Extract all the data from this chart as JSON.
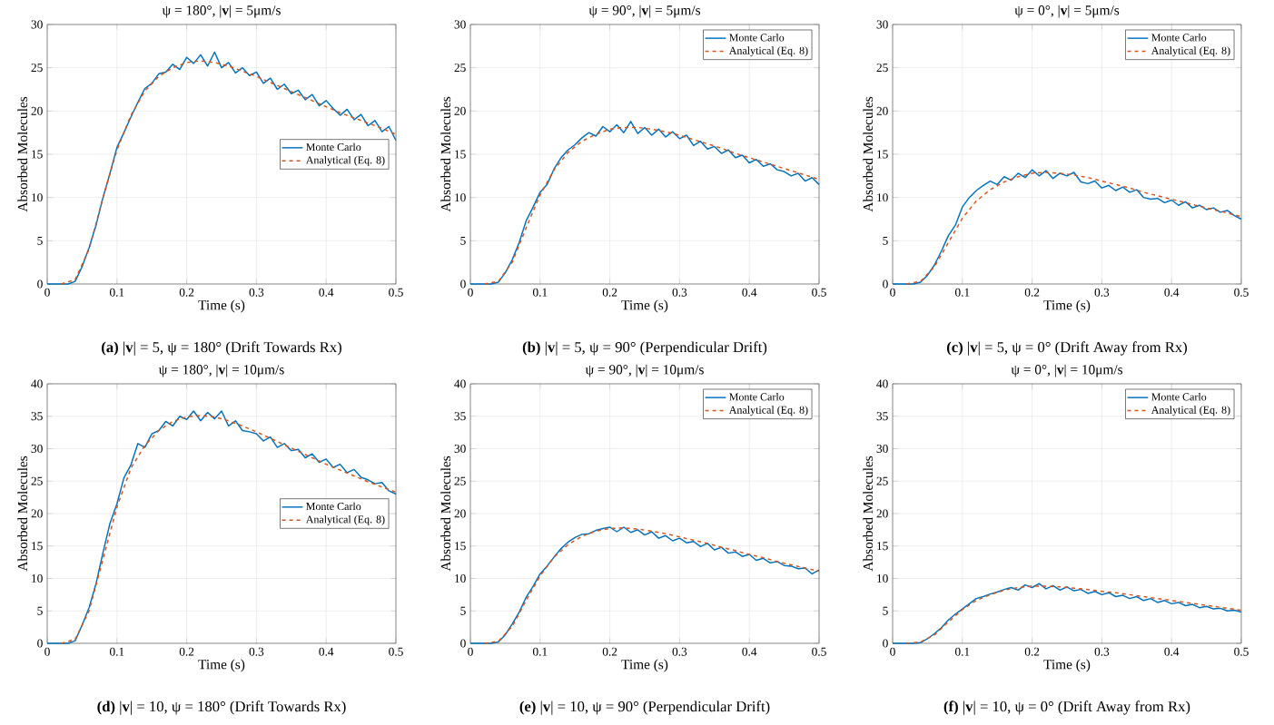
{
  "chart_data": [
    {
      "type": "line",
      "title": "ψ = 180°, |**v**| = 5μm/s",
      "xlabel": "Time (s)",
      "ylabel": "Absorbed Molecules",
      "annotations": [
        "**(a)** |**v**| = 5, ψ = 180° (Drift Towards Rx)"
      ],
      "xlim": [
        0,
        0.5
      ],
      "ylim": [
        0,
        30
      ],
      "xticks": [
        0,
        0.1,
        0.2,
        0.3,
        0.4,
        0.5
      ],
      "yticks": [
        0,
        5,
        10,
        15,
        20,
        25,
        30
      ],
      "grid": true,
      "legend": "right",
      "series": [
        {
          "name": "Monte Carlo",
          "color": "#0072bd",
          "line_style": "solid",
          "x": [
            0,
            0.01,
            0.02,
            0.03,
            0.04,
            0.05,
            0.06,
            0.07,
            0.08,
            0.09,
            0.1,
            0.11,
            0.12,
            0.13,
            0.14,
            0.15,
            0.16,
            0.17,
            0.18,
            0.19,
            0.2,
            0.21,
            0.22,
            0.23,
            0.24,
            0.25,
            0.26,
            0.27,
            0.28,
            0.29,
            0.3,
            0.31,
            0.32,
            0.33,
            0.34,
            0.35,
            0.36,
            0.37,
            0.38,
            0.39,
            0.4,
            0.41,
            0.42,
            0.43,
            0.44,
            0.45,
            0.46,
            0.47,
            0.48,
            0.49,
            0.5
          ],
          "values": [
            0,
            0,
            0,
            0,
            0.3,
            2,
            4.2,
            6.8,
            10,
            12.8,
            15.8,
            17.5,
            19.3,
            21,
            22.6,
            23.2,
            24.3,
            24.5,
            25.4,
            24.8,
            26.2,
            25.5,
            26.5,
            25.2,
            26.8,
            25,
            25.6,
            24.4,
            25,
            24.1,
            24.5,
            23.2,
            23.8,
            22.5,
            23.1,
            22,
            22.4,
            21.3,
            21.9,
            20.6,
            21.2,
            20.3,
            19.5,
            20.2,
            19,
            19.6,
            18.3,
            18.9,
            17.6,
            18.2,
            16.6
          ]
        },
        {
          "name": "Analytical (Eq. 8)",
          "color": "#d95319",
          "line_style": "dashed",
          "x": [
            0.02,
            0.04,
            0.06,
            0.08,
            0.1,
            0.12,
            0.14,
            0.16,
            0.18,
            0.2,
            0.22,
            0.24,
            0.26,
            0.28,
            0.3,
            0.32,
            0.34,
            0.36,
            0.38,
            0.4,
            0.42,
            0.44,
            0.46,
            0.48,
            0.5
          ],
          "values": [
            0,
            0.5,
            4,
            10,
            15.5,
            19.5,
            22.3,
            24,
            25,
            25.6,
            25.8,
            25.6,
            25.2,
            24.6,
            24,
            23.3,
            22.6,
            21.9,
            21.2,
            20.5,
            19.8,
            19.2,
            18.6,
            18,
            17.3
          ]
        }
      ]
    },
    {
      "type": "line",
      "title": "ψ = 90°, |**v**| = 5μm/s",
      "xlabel": "Time (s)",
      "ylabel": "Absorbed Molecules",
      "annotations": [
        "**(b)** |**v**| = 5, ψ = 90° (Perpendicular Drift)"
      ],
      "xlim": [
        0,
        0.5
      ],
      "ylim": [
        0,
        30
      ],
      "xticks": [
        0,
        0.1,
        0.2,
        0.3,
        0.4,
        0.5
      ],
      "yticks": [
        0,
        5,
        10,
        15,
        20,
        25,
        30
      ],
      "grid": true,
      "legend": "top right",
      "series": [
        {
          "name": "Monte Carlo",
          "color": "#0072bd",
          "line_style": "solid",
          "x": [
            0,
            0.01,
            0.02,
            0.03,
            0.04,
            0.05,
            0.06,
            0.07,
            0.08,
            0.09,
            0.1,
            0.11,
            0.12,
            0.13,
            0.14,
            0.15,
            0.16,
            0.17,
            0.18,
            0.19,
            0.2,
            0.21,
            0.22,
            0.23,
            0.24,
            0.25,
            0.26,
            0.27,
            0.28,
            0.29,
            0.3,
            0.31,
            0.32,
            0.33,
            0.34,
            0.35,
            0.36,
            0.37,
            0.38,
            0.39,
            0.4,
            0.41,
            0.42,
            0.43,
            0.44,
            0.45,
            0.46,
            0.47,
            0.48,
            0.49,
            0.5
          ],
          "values": [
            0,
            0,
            0,
            0,
            0.2,
            1.3,
            2.8,
            4.8,
            7.3,
            8.9,
            10.6,
            11.5,
            13.3,
            14.6,
            15.5,
            16.1,
            16.9,
            17.5,
            17.1,
            18.2,
            17.6,
            18.4,
            17.5,
            18.8,
            17.4,
            18.1,
            17.2,
            17.9,
            17,
            17.6,
            16.8,
            17.2,
            16,
            16.5,
            15.6,
            15.9,
            15.1,
            15.5,
            14.6,
            14.9,
            14,
            14.4,
            13.6,
            13.9,
            13.2,
            13,
            12.5,
            12.8,
            11.9,
            12.3,
            11.5
          ]
        },
        {
          "name": "Analytical (Eq. 8)",
          "color": "#d95319",
          "line_style": "dashed",
          "x": [
            0.02,
            0.04,
            0.06,
            0.08,
            0.1,
            0.12,
            0.14,
            0.16,
            0.18,
            0.2,
            0.22,
            0.24,
            0.26,
            0.28,
            0.3,
            0.32,
            0.34,
            0.36,
            0.38,
            0.4,
            0.42,
            0.44,
            0.46,
            0.48,
            0.5
          ],
          "values": [
            0,
            0.3,
            2.5,
            6.5,
            10.3,
            13.2,
            15.2,
            16.5,
            17.3,
            17.9,
            18.1,
            18.1,
            17.9,
            17.6,
            17.2,
            16.7,
            16.2,
            15.7,
            15.1,
            14.6,
            14.1,
            13.6,
            13.1,
            12.6,
            12.1
          ]
        }
      ]
    },
    {
      "type": "line",
      "title": "ψ = 0°, |**v**| = 5μm/s",
      "xlabel": "Time (s)",
      "ylabel": "Absorbed Molecules",
      "annotations": [
        "**(c)** |**v**| = 5, ψ = 0° (Drift Away from Rx)"
      ],
      "xlim": [
        0,
        0.5
      ],
      "ylim": [
        0,
        30
      ],
      "xticks": [
        0,
        0.1,
        0.2,
        0.3,
        0.4,
        0.5
      ],
      "yticks": [
        0,
        5,
        10,
        15,
        20,
        25,
        30
      ],
      "grid": true,
      "legend": "top right",
      "series": [
        {
          "name": "Monte Carlo",
          "color": "#0072bd",
          "line_style": "solid",
          "x": [
            0,
            0.01,
            0.02,
            0.03,
            0.04,
            0.05,
            0.06,
            0.07,
            0.08,
            0.09,
            0.1,
            0.11,
            0.12,
            0.13,
            0.14,
            0.15,
            0.16,
            0.17,
            0.18,
            0.19,
            0.2,
            0.21,
            0.22,
            0.23,
            0.24,
            0.25,
            0.26,
            0.27,
            0.28,
            0.29,
            0.3,
            0.31,
            0.32,
            0.33,
            0.34,
            0.35,
            0.36,
            0.37,
            0.38,
            0.39,
            0.4,
            0.41,
            0.42,
            0.43,
            0.44,
            0.45,
            0.46,
            0.47,
            0.48,
            0.49,
            0.5
          ],
          "values": [
            0,
            0,
            0,
            0,
            0.2,
            1,
            2.2,
            3.8,
            5.6,
            6.8,
            8.9,
            10,
            10.8,
            11.4,
            11.9,
            11.5,
            12.4,
            12,
            12.8,
            12.3,
            13.2,
            12.5,
            13.1,
            12.2,
            12.8,
            12.5,
            12.9,
            11.8,
            11.6,
            11.9,
            11.1,
            11.4,
            10.8,
            11.2,
            10.6,
            10.9,
            10,
            9.8,
            9.9,
            9.4,
            9.7,
            9.1,
            9.5,
            8.8,
            9.1,
            8.6,
            8.8,
            8.3,
            8.5,
            7.9,
            7.5
          ]
        },
        {
          "name": "Analytical (Eq. 8)",
          "color": "#d95319",
          "line_style": "dashed",
          "x": [
            0.02,
            0.04,
            0.06,
            0.08,
            0.1,
            0.12,
            0.14,
            0.16,
            0.18,
            0.2,
            0.22,
            0.24,
            0.26,
            0.28,
            0.3,
            0.32,
            0.34,
            0.36,
            0.38,
            0.4,
            0.42,
            0.44,
            0.46,
            0.48,
            0.5
          ],
          "values": [
            0,
            0.3,
            2,
            4.8,
            7.6,
            9.6,
            10.9,
            11.8,
            12.4,
            12.8,
            12.9,
            12.8,
            12.6,
            12.3,
            11.9,
            11.5,
            11.1,
            10.6,
            10.2,
            9.8,
            9.4,
            9,
            8.6,
            8.2,
            7.8
          ]
        }
      ]
    },
    {
      "type": "line",
      "title": "ψ = 180°, |**v**| = 10μm/s",
      "xlabel": "Time (s)",
      "ylabel": "Absorbed Molecules",
      "annotations": [
        "**(d)** |**v**| = 10, ψ = 180° (Drift Towards Rx)"
      ],
      "xlim": [
        0,
        0.5
      ],
      "ylim": [
        0,
        40
      ],
      "xticks": [
        0,
        0.1,
        0.2,
        0.3,
        0.4,
        0.5
      ],
      "yticks": [
        0,
        5,
        10,
        15,
        20,
        25,
        30,
        35,
        40
      ],
      "grid": true,
      "legend": "right",
      "series": [
        {
          "name": "Monte Carlo",
          "color": "#0072bd",
          "line_style": "solid",
          "x": [
            0,
            0.01,
            0.02,
            0.03,
            0.04,
            0.05,
            0.06,
            0.07,
            0.08,
            0.09,
            0.1,
            0.11,
            0.12,
            0.13,
            0.14,
            0.15,
            0.16,
            0.17,
            0.18,
            0.19,
            0.2,
            0.21,
            0.22,
            0.23,
            0.24,
            0.25,
            0.26,
            0.27,
            0.28,
            0.29,
            0.3,
            0.31,
            0.32,
            0.33,
            0.34,
            0.35,
            0.36,
            0.37,
            0.38,
            0.39,
            0.4,
            0.41,
            0.42,
            0.43,
            0.44,
            0.45,
            0.46,
            0.47,
            0.48,
            0.49,
            0.5
          ],
          "values": [
            0,
            0,
            0,
            0,
            0.4,
            2.8,
            5.5,
            9.2,
            14,
            18.5,
            21.5,
            25.5,
            27.5,
            30.8,
            30.2,
            32.3,
            32.8,
            34.2,
            33.5,
            35,
            34.5,
            35.8,
            34.3,
            35.6,
            34.6,
            35.8,
            33.5,
            34.3,
            32.8,
            32.6,
            32.3,
            31.2,
            31.8,
            30.2,
            30.8,
            29.7,
            29.9,
            28.6,
            29.2,
            27.9,
            28.4,
            27.1,
            27.6,
            26.3,
            26.8,
            25.6,
            25.2,
            24.6,
            24.8,
            23.5,
            23
          ]
        },
        {
          "name": "Analytical (Eq. 8)",
          "color": "#d95319",
          "line_style": "dashed",
          "x": [
            0.02,
            0.04,
            0.06,
            0.08,
            0.1,
            0.12,
            0.14,
            0.16,
            0.18,
            0.2,
            0.22,
            0.24,
            0.26,
            0.28,
            0.3,
            0.32,
            0.34,
            0.36,
            0.38,
            0.4,
            0.42,
            0.44,
            0.46,
            0.48,
            0.5
          ],
          "values": [
            0,
            0.6,
            5,
            13,
            21,
            27,
            30.5,
            32.8,
            34.2,
            34.9,
            35.1,
            34.9,
            34.3,
            33.5,
            32.6,
            31.6,
            30.6,
            29.6,
            28.6,
            27.6,
            26.7,
            25.8,
            24.9,
            24.1,
            23.3
          ]
        }
      ]
    },
    {
      "type": "line",
      "title": "ψ = 90°, |**v**| = 10μm/s",
      "xlabel": "Time (s)",
      "ylabel": "Absorbed Molecules",
      "annotations": [
        "**(e)** |**v**| = 10, ψ = 90° (Perpendicular Drift)"
      ],
      "xlim": [
        0,
        0.5
      ],
      "ylim": [
        0,
        40
      ],
      "xticks": [
        0,
        0.1,
        0.2,
        0.3,
        0.4,
        0.5
      ],
      "yticks": [
        0,
        5,
        10,
        15,
        20,
        25,
        30,
        35,
        40
      ],
      "grid": true,
      "legend": "top right",
      "series": [
        {
          "name": "Monte Carlo",
          "color": "#0072bd",
          "line_style": "solid",
          "x": [
            0,
            0.01,
            0.02,
            0.03,
            0.04,
            0.05,
            0.06,
            0.07,
            0.08,
            0.09,
            0.1,
            0.11,
            0.12,
            0.13,
            0.14,
            0.15,
            0.16,
            0.17,
            0.18,
            0.19,
            0.2,
            0.21,
            0.22,
            0.23,
            0.24,
            0.25,
            0.26,
            0.27,
            0.28,
            0.29,
            0.3,
            0.31,
            0.32,
            0.33,
            0.34,
            0.35,
            0.36,
            0.37,
            0.38,
            0.39,
            0.4,
            0.41,
            0.42,
            0.43,
            0.44,
            0.45,
            0.46,
            0.47,
            0.48,
            0.49,
            0.5
          ],
          "values": [
            0,
            0,
            0,
            0,
            0.2,
            1.3,
            3,
            4.8,
            7.1,
            8.8,
            10.7,
            11.9,
            13.3,
            14.6,
            15.6,
            16.3,
            16.8,
            16.9,
            17.4,
            17.7,
            17.9,
            17.2,
            17.9,
            17.1,
            17.5,
            16.7,
            17.2,
            16.2,
            16.6,
            15.8,
            16.2,
            15.5,
            15.7,
            14.9,
            15.4,
            14.4,
            14.8,
            13.9,
            14.1,
            13.4,
            13.7,
            12.8,
            13.1,
            12.4,
            12.6,
            12,
            11.9,
            11.5,
            11.6,
            10.7,
            11.3
          ]
        },
        {
          "name": "Analytical (Eq. 8)",
          "color": "#d95319",
          "line_style": "dashed",
          "x": [
            0.02,
            0.04,
            0.06,
            0.08,
            0.1,
            0.12,
            0.14,
            0.16,
            0.18,
            0.2,
            0.22,
            0.24,
            0.26,
            0.28,
            0.3,
            0.32,
            0.34,
            0.36,
            0.38,
            0.4,
            0.42,
            0.44,
            0.46,
            0.48,
            0.5
          ],
          "values": [
            0,
            0.3,
            2.6,
            6.6,
            10.4,
            13.3,
            15.2,
            16.5,
            17.3,
            17.7,
            17.8,
            17.6,
            17.3,
            16.9,
            16.4,
            15.9,
            15.4,
            14.8,
            14.3,
            13.7,
            13.2,
            12.6,
            12.1,
            11.6,
            11.1
          ]
        }
      ]
    },
    {
      "type": "line",
      "title": "ψ = 0°, |**v**| = 10μm/s",
      "xlabel": "Time (s)",
      "ylabel": "Absorbed Molecules",
      "annotations": [
        "**(f)** |**v**| = 10, ψ = 0° (Drift Away from Rx)"
      ],
      "xlim": [
        0,
        0.5
      ],
      "ylim": [
        0,
        40
      ],
      "xticks": [
        0,
        0.1,
        0.2,
        0.3,
        0.4,
        0.5
      ],
      "yticks": [
        0,
        5,
        10,
        15,
        20,
        25,
        30,
        35,
        40
      ],
      "grid": true,
      "legend": "top right",
      "series": [
        {
          "name": "Monte Carlo",
          "color": "#0072bd",
          "line_style": "solid",
          "x": [
            0,
            0.01,
            0.02,
            0.03,
            0.04,
            0.05,
            0.06,
            0.07,
            0.08,
            0.09,
            0.1,
            0.11,
            0.12,
            0.13,
            0.14,
            0.15,
            0.16,
            0.17,
            0.18,
            0.19,
            0.2,
            0.21,
            0.22,
            0.23,
            0.24,
            0.25,
            0.26,
            0.27,
            0.28,
            0.29,
            0.3,
            0.31,
            0.32,
            0.33,
            0.34,
            0.35,
            0.36,
            0.37,
            0.38,
            0.39,
            0.4,
            0.41,
            0.42,
            0.43,
            0.44,
            0.45,
            0.46,
            0.47,
            0.48,
            0.49,
            0.5
          ],
          "values": [
            0,
            0,
            0,
            0,
            0.1,
            0.7,
            1.5,
            2.4,
            3.6,
            4.5,
            5.3,
            6.1,
            6.9,
            7.2,
            7.6,
            7.9,
            8.3,
            8.6,
            8.2,
            9,
            8.6,
            9.2,
            8.4,
            8.9,
            8.2,
            8.7,
            8.1,
            8.3,
            7.7,
            8,
            7.5,
            7.8,
            7.2,
            7.4,
            6.9,
            7.2,
            6.6,
            6.9,
            6.3,
            6.6,
            6.1,
            6.3,
            5.8,
            6,
            5.5,
            5.7,
            5.3,
            5.4,
            5,
            5.1,
            4.8
          ]
        },
        {
          "name": "Analytical (Eq. 8)",
          "color": "#d95319",
          "line_style": "dashed",
          "x": [
            0.02,
            0.04,
            0.06,
            0.08,
            0.1,
            0.12,
            0.14,
            0.16,
            0.18,
            0.2,
            0.22,
            0.24,
            0.26,
            0.28,
            0.3,
            0.32,
            0.34,
            0.36,
            0.38,
            0.4,
            0.42,
            0.44,
            0.46,
            0.48,
            0.5
          ],
          "values": [
            0,
            0.2,
            1.3,
            3.3,
            5.2,
            6.6,
            7.5,
            8.2,
            8.6,
            8.8,
            8.8,
            8.7,
            8.5,
            8.3,
            8,
            7.8,
            7.5,
            7.2,
            6.9,
            6.6,
            6.3,
            6,
            5.7,
            5.4,
            5.1
          ]
        }
      ]
    }
  ]
}
